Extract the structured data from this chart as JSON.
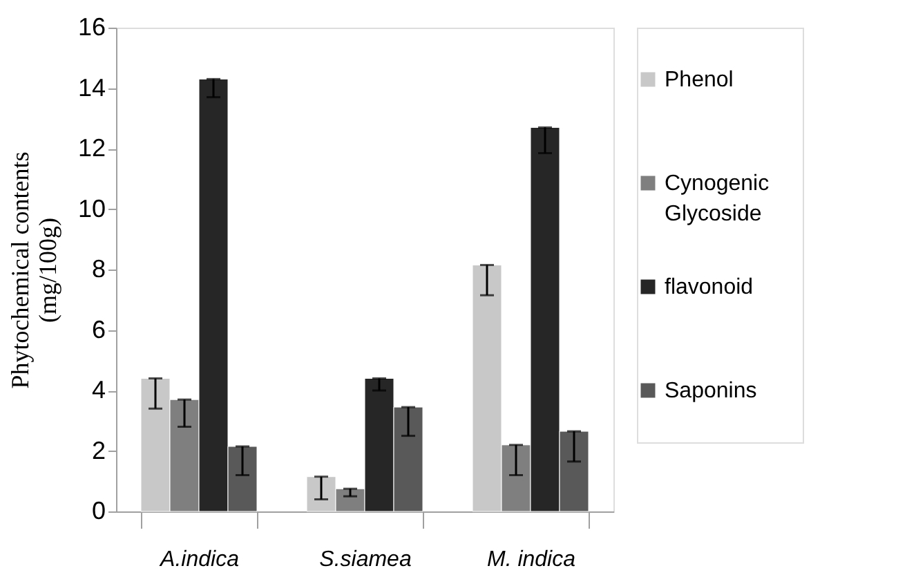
{
  "chart_data": {
    "type": "bar",
    "ylabel": "Phytochemical contents (mg/100g)",
    "categories": [
      "A.indica",
      "S.siamea",
      "M. indica"
    ],
    "series": [
      {
        "name": "Phenol",
        "color": "#c8c8c8",
        "values": [
          4.4,
          1.15,
          8.15
        ],
        "errors": [
          [
            3.4,
            4.4
          ],
          [
            0.4,
            1.15
          ],
          [
            7.15,
            8.15
          ]
        ]
      },
      {
        "name": "Cynogenic Glycoside",
        "color": "#7f7f7f",
        "values": [
          3.7,
          0.75,
          2.2
        ],
        "errors": [
          [
            2.8,
            3.7
          ],
          [
            0.5,
            0.75
          ],
          [
            1.2,
            2.2
          ]
        ]
      },
      {
        "name": "flavonoid",
        "color": "#262626",
        "values": [
          14.3,
          4.4,
          12.7
        ],
        "errors": [
          [
            13.7,
            14.3
          ],
          [
            4.0,
            4.4
          ],
          [
            11.85,
            12.7
          ]
        ]
      },
      {
        "name": "Saponins",
        "color": "#595959",
        "values": [
          2.15,
          3.45,
          2.65
        ],
        "errors": [
          [
            1.2,
            2.15
          ],
          [
            2.5,
            3.45
          ],
          [
            1.65,
            2.65
          ]
        ]
      }
    ],
    "ylim": [
      0,
      16
    ],
    "yticks": [
      0,
      2,
      4,
      6,
      8,
      10,
      12,
      14,
      16
    ],
    "grid": false,
    "legend": "right"
  }
}
